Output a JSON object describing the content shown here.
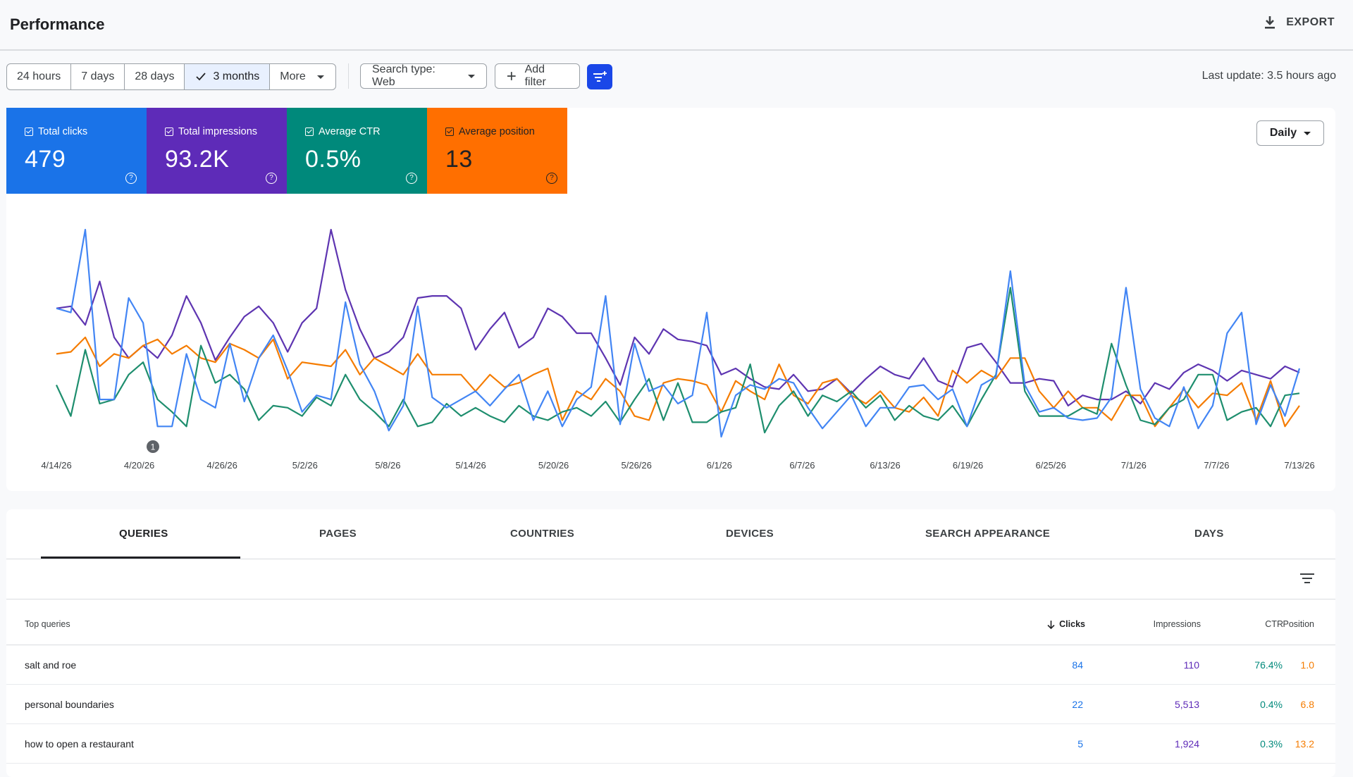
{
  "header": {
    "title": "Performance",
    "export_label": "EXPORT"
  },
  "toolbar": {
    "ranges": [
      "24 hours",
      "7 days",
      "28 days",
      "3 months",
      "More"
    ],
    "active_range": "3 months",
    "search_type_label": "Search type: Web",
    "add_filter_label": "Add filter",
    "last_update": "Last update: 3.5 hours ago"
  },
  "metrics": [
    {
      "label": "Total clicks",
      "value": "479",
      "color": "#1a73e8"
    },
    {
      "label": "Total impressions",
      "value": "93.2K",
      "color": "#5e2bb8"
    },
    {
      "label": "Average CTR",
      "value": "0.5%",
      "color": "#00897b"
    },
    {
      "label": "Average position",
      "value": "13",
      "color": "#ff6f00"
    }
  ],
  "granularity": "Daily",
  "annotation_label": "1",
  "colors": {
    "clicks": "#4285f4",
    "impressions": "#5e35b1",
    "ctr": "#1e8e6e",
    "position": "#f57c00"
  },
  "chart_data": {
    "type": "line",
    "x_tick_labels": [
      "4/14/26",
      "4/20/26",
      "4/26/26",
      "5/2/26",
      "5/8/26",
      "5/14/26",
      "5/20/26",
      "5/26/26",
      "6/1/26",
      "6/7/26",
      "6/13/26",
      "6/19/26",
      "6/25/26",
      "7/1/26",
      "7/7/26",
      "7/13/26"
    ],
    "x_start": "4/14/26",
    "x_end": "7/13/26",
    "y_axis_visible": false,
    "grid": false,
    "series": [
      {
        "name": "Total impressions",
        "color_key": "impressions",
        "values": [
          62,
          63,
          54,
          75,
          48,
          38,
          44,
          38,
          49,
          68,
          55,
          37,
          48,
          58,
          63,
          55,
          41,
          55,
          62,
          100,
          71,
          52,
          38,
          41,
          48,
          67,
          68,
          68,
          62,
          42,
          52,
          60,
          43,
          48,
          62,
          58,
          50,
          50,
          38,
          25,
          48,
          40,
          52,
          47,
          46,
          44,
          30,
          33,
          28,
          24,
          23,
          30,
          22,
          23,
          28,
          21,
          28,
          34,
          30,
          28,
          38,
          27,
          24,
          43,
          45,
          36,
          26,
          26,
          28,
          27,
          15,
          20,
          18,
          18,
          22,
          16,
          26,
          23,
          31,
          35,
          32,
          27,
          32,
          30,
          28,
          34,
          31
        ]
      },
      {
        "name": "Total clicks",
        "color_key": "clicks",
        "values": [
          62,
          60,
          100,
          18,
          18,
          67,
          55,
          5,
          5,
          40,
          18,
          14,
          45,
          17,
          38,
          49,
          32,
          12,
          20,
          18,
          65,
          35,
          22,
          3,
          15,
          63,
          19,
          14,
          18,
          22,
          15,
          23,
          30,
          8,
          22,
          5,
          18,
          24,
          68,
          6,
          45,
          22,
          25,
          16,
          20,
          60,
          0,
          20,
          25,
          23,
          28,
          26,
          14,
          4,
          12,
          20,
          5,
          14,
          14,
          24,
          25,
          18,
          23,
          5,
          25,
          29,
          80,
          25,
          12,
          14,
          9,
          8,
          9,
          19,
          72,
          23,
          9,
          5,
          24,
          4,
          15,
          50,
          60,
          6,
          25,
          10,
          33
        ]
      },
      {
        "name": "Average CTR",
        "color_key": "ctr",
        "values": [
          25,
          10,
          42,
          16,
          18,
          30,
          36,
          18,
          12,
          5,
          44,
          26,
          30,
          23,
          8,
          15,
          14,
          10,
          19,
          15,
          30,
          18,
          12,
          5,
          18,
          5,
          7,
          16,
          10,
          14,
          10,
          7,
          15,
          10,
          8,
          12,
          14,
          10,
          17,
          7,
          18,
          28,
          8,
          26,
          7,
          7,
          12,
          14,
          35,
          2,
          15,
          22,
          10,
          20,
          17,
          22,
          14,
          20,
          8,
          15,
          10,
          8,
          15,
          5,
          18,
          30,
          72,
          22,
          10,
          10,
          10,
          14,
          11,
          45,
          25,
          8,
          6,
          14,
          18,
          30,
          30,
          8,
          12,
          14,
          5,
          20,
          21
        ]
      },
      {
        "name": "Average position",
        "color_key": "position",
        "values": [
          40,
          41,
          48,
          34,
          40,
          38,
          44,
          47,
          40,
          44,
          38,
          36,
          45,
          42,
          38,
          47,
          28,
          36,
          35,
          34,
          42,
          30,
          38,
          34,
          30,
          40,
          30,
          30,
          30,
          22,
          30,
          24,
          26,
          30,
          33,
          8,
          22,
          18,
          28,
          22,
          10,
          8,
          26,
          28,
          27,
          25,
          12,
          27,
          22,
          18,
          35,
          20,
          16,
          26,
          28,
          20,
          16,
          22,
          14,
          12,
          19,
          10,
          32,
          26,
          32,
          28,
          38,
          38,
          22,
          14,
          22,
          14,
          14,
          8,
          20,
          20,
          5,
          14,
          23,
          14,
          21,
          20,
          26,
          8,
          27,
          5,
          15
        ]
      }
    ]
  },
  "tabs": [
    "QUERIES",
    "PAGES",
    "COUNTRIES",
    "DEVICES",
    "SEARCH APPEARANCE",
    "DAYS"
  ],
  "table": {
    "columns": [
      "Top queries",
      "Clicks",
      "Impressions",
      "CTR",
      "Position"
    ],
    "rows": [
      {
        "query": "salt and roe",
        "clicks": "84",
        "impressions": "110",
        "ctr": "76.4%",
        "position": "1.0"
      },
      {
        "query": "personal boundaries",
        "clicks": "22",
        "impressions": "5,513",
        "ctr": "0.4%",
        "position": "6.8"
      },
      {
        "query": "how to open a restaurant",
        "clicks": "5",
        "impressions": "1,924",
        "ctr": "0.3%",
        "position": "13.2"
      }
    ]
  }
}
